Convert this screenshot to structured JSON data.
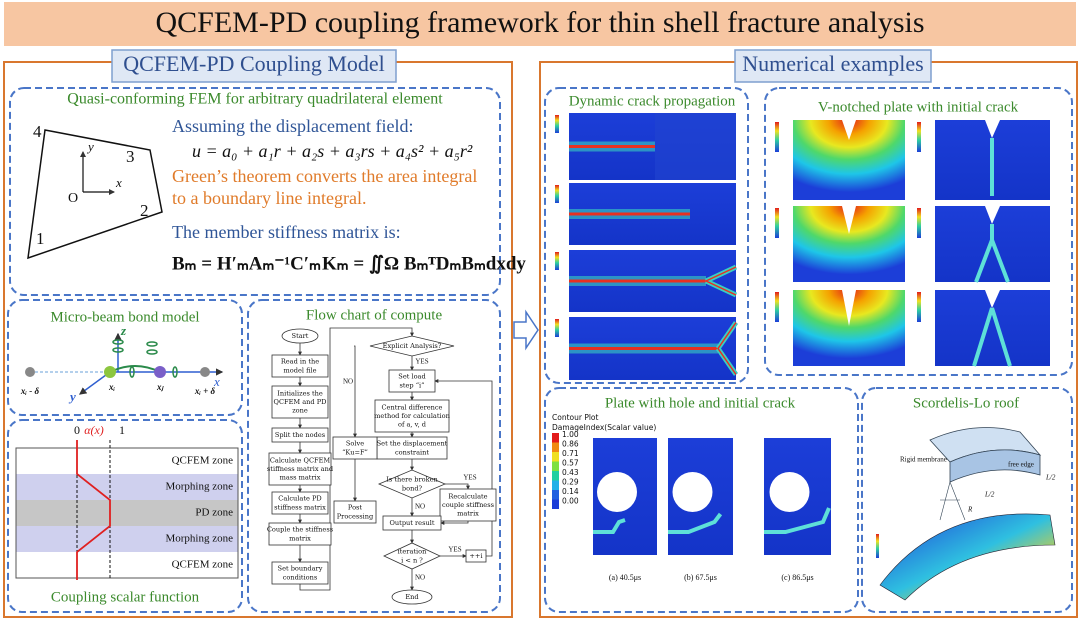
{
  "header": {
    "title": "QCFEM-PD coupling framework for thin shell fracture analysis"
  },
  "coupling_model": {
    "title": "QCFEM-PD Coupling Model",
    "quasi_conforming": {
      "title": "Quasi-conforming FEM for arbitrary quadrilateral element",
      "node_labels": [
        "1",
        "2",
        "3",
        "4"
      ],
      "origin": "O",
      "x_axis": "x",
      "y_axis": "y",
      "displacement_heading": "Assuming the displacement field:",
      "displacement_formula": "u = a₀ + a₁r + a₂s + a₃rs + a₄s² + a₅r²",
      "greens_theorem": [
        "Green’s theorem converts the area integral",
        "to a boundary line integral."
      ],
      "stiffness_heading": "The member stiffness matrix is:",
      "b_matrix": "Bₘ = H′ₘAₘ⁻¹C′ₘ",
      "k_matrix": "Kₘ = ∬Ω BₘᵀDₘBₘdxdy"
    },
    "micro_beam": {
      "title": "Micro-beam bond model",
      "axes": [
        "z",
        "x",
        "y"
      ],
      "points": [
        "xᵢ - δ",
        "xᵢ",
        "xⱼ",
        "xᵢ + δ"
      ]
    },
    "coupling_function": {
      "title": "Coupling scalar function",
      "scale": [
        "0",
        "α(x)",
        "1"
      ],
      "zones": [
        "QCFEM zone",
        "Morphing zone",
        "PD zone",
        "Morphing zone",
        "QCFEM zone"
      ]
    },
    "flow_chart": {
      "title": "Flow chart of compute",
      "nodes": [
        {
          "lines": [
            "Start"
          ]
        },
        {
          "lines": [
            "Read in the",
            "model file"
          ]
        },
        {
          "lines": [
            "Initializes the",
            "QCFEM and PD",
            "zone"
          ]
        },
        {
          "lines": [
            "Split the nodes"
          ]
        },
        {
          "lines": [
            "Calculate QCFEM",
            "stiffness matrix and",
            "mass matrix"
          ]
        },
        {
          "lines": [
            "Calculate PD",
            "stiffness matrix"
          ]
        },
        {
          "lines": [
            "Couple the stiffness",
            "matrix"
          ]
        },
        {
          "lines": [
            "Set boundary",
            "conditions"
          ]
        },
        {
          "lines": [
            "Explicit Analysis?"
          ]
        },
        {
          "lines": [
            "Set load",
            "step “i”"
          ]
        },
        {
          "lines": [
            "Central difference",
            "method for calculation",
            "of a, v, d"
          ]
        },
        {
          "lines": [
            "Set the displacement",
            "constraint"
          ]
        },
        {
          "lines": [
            "Is there broken",
            "bond?"
          ]
        },
        {
          "lines": [
            "Recalculate",
            "couple stiffness",
            "matrix"
          ]
        },
        {
          "lines": [
            "Output result"
          ]
        },
        {
          "lines": [
            "iteration",
            "i < n ?"
          ]
        },
        {
          "lines": [
            "++i"
          ]
        },
        {
          "lines": [
            "End"
          ]
        },
        {
          "lines": [
            "Solve",
            "“Ku=F”"
          ]
        },
        {
          "lines": [
            "Post",
            "Processing"
          ]
        }
      ],
      "branch_labels": [
        "YES",
        "NO",
        "YES",
        "NO",
        "YES",
        "NO"
      ]
    }
  },
  "numerical_examples": {
    "title": "Numerical examples",
    "dynamic_crack": {
      "title": "Dynamic crack propagation"
    },
    "v_notched": {
      "title": "V-notched plate with initial crack"
    },
    "plate_hole": {
      "title": "Plate with hole and initial crack",
      "legend_title": [
        "Contour Plot",
        "DamageIndex(Scalar value)"
      ],
      "legend_values": [
        "1.00",
        "0.86",
        "0.71",
        "0.57",
        "0.43",
        "0.29",
        "0.14",
        "0.00"
      ],
      "captions": [
        "(a) 40.5μs",
        "(b) 67.5μs",
        "(c) 86.5μs"
      ]
    },
    "scordelis": {
      "title": "Scordelis-Lo roof",
      "labels": [
        "Rigid membrane",
        "free edge",
        "L/2",
        "R",
        "L/2"
      ]
    }
  }
}
